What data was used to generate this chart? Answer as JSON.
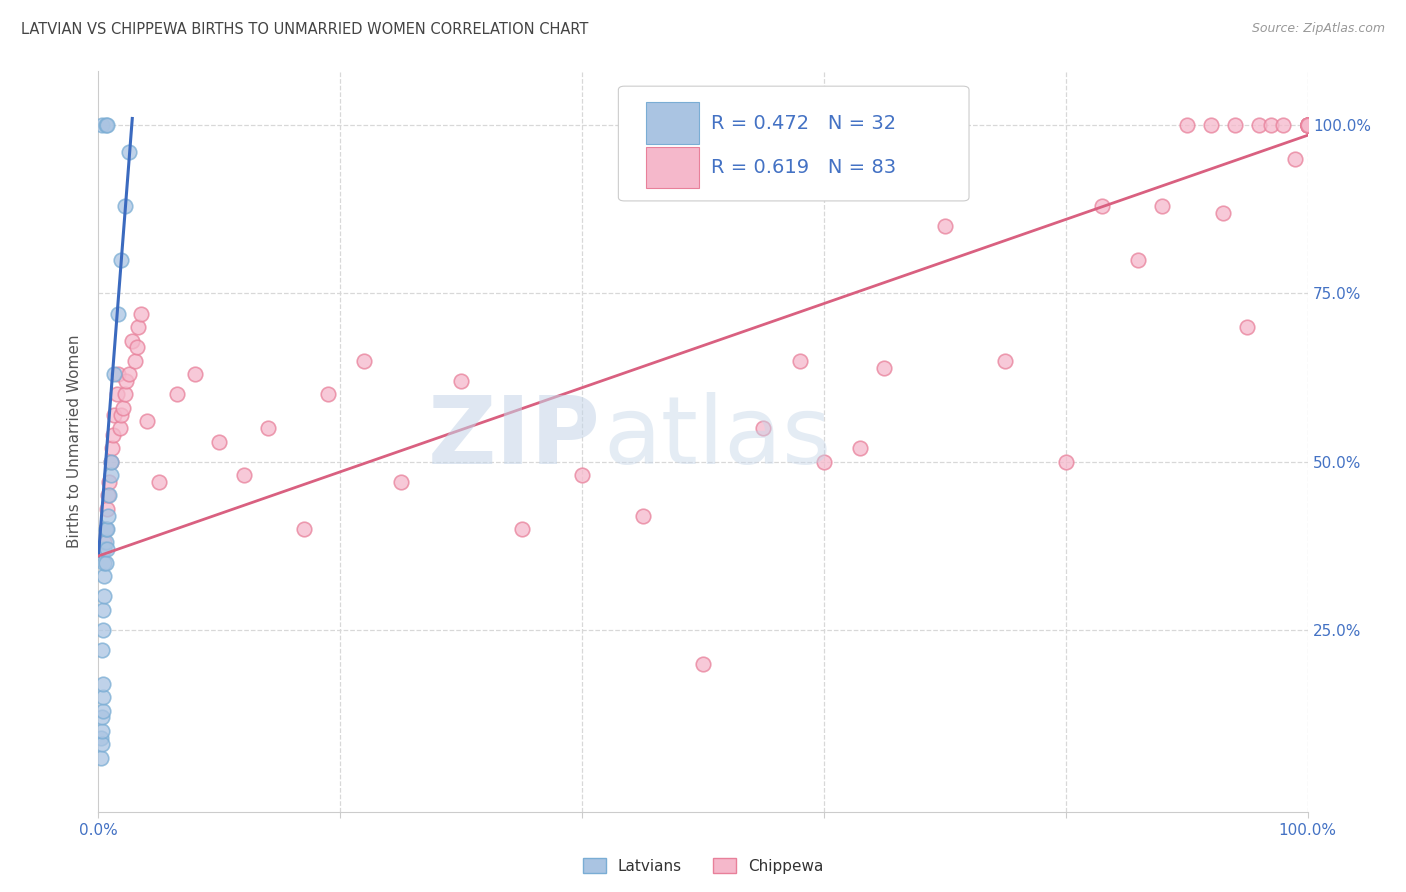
{
  "title": "LATVIAN VS CHIPPEWA BIRTHS TO UNMARRIED WOMEN CORRELATION CHART",
  "source": "Source: ZipAtlas.com",
  "ylabel": "Births to Unmarried Women",
  "latvian_color": "#aac4e2",
  "latvian_edge_color": "#7aadd4",
  "chippewa_color": "#f5b8cb",
  "chippewa_edge_color": "#e8809a",
  "latvian_line_color": "#3b6abf",
  "chippewa_line_color": "#d96080",
  "R_latvian": 0.472,
  "N_latvian": 32,
  "R_chippewa": 0.619,
  "N_chippewa": 83,
  "title_color": "#444444",
  "axis_color": "#4472c4",
  "label_color": "#555555",
  "background_color": "#ffffff",
  "grid_color": "#d8d8d8",
  "watermark_zip": "ZIP",
  "watermark_atlas": "atlas",
  "latvian_x": [
    0.002,
    0.003,
    0.003,
    0.003,
    0.004,
    0.004,
    0.004,
    0.004,
    0.004,
    0.005,
    0.005,
    0.005,
    0.005,
    0.005,
    0.005,
    0.006,
    0.006,
    0.007,
    0.007,
    0.008,
    0.008,
    0.009,
    0.009,
    0.01,
    0.01,
    0.011,
    0.013,
    0.016,
    0.019,
    0.022,
    0.025,
    0.028
  ],
  "latvian_y": [
    0.32,
    0.33,
    0.35,
    0.36,
    0.34,
    0.355,
    0.36,
    0.365,
    0.37,
    0.355,
    0.36,
    0.365,
    0.37,
    0.375,
    0.38,
    0.36,
    0.37,
    0.375,
    0.38,
    0.38,
    0.39,
    0.38,
    0.39,
    0.4,
    0.41,
    0.43,
    0.5,
    0.6,
    0.7,
    0.8,
    0.9,
    1.0
  ],
  "latvian_low_x": [
    0.002,
    0.003,
    0.003,
    0.004,
    0.004,
    0.005,
    0.005,
    0.005,
    0.006,
    0.007,
    0.008,
    0.009,
    0.01,
    0.012,
    0.016,
    0.022
  ],
  "latvian_low_y": [
    0.06,
    0.07,
    0.09,
    0.1,
    0.11,
    0.12,
    0.13,
    0.14,
    0.15,
    0.16,
    0.18,
    0.2,
    0.22,
    0.25,
    0.3,
    0.4
  ],
  "chippewa_x": [
    0.005,
    0.006,
    0.007,
    0.009,
    0.011,
    0.012,
    0.013,
    0.015,
    0.018,
    0.019,
    0.02,
    0.021,
    0.023,
    0.025,
    0.03,
    0.032,
    0.035,
    0.04,
    0.045,
    0.05,
    0.055,
    0.06,
    0.065,
    0.07,
    0.08,
    0.09,
    0.1,
    0.12,
    0.14,
    0.16,
    0.18,
    0.2,
    0.22,
    0.25,
    0.28,
    0.3,
    0.35,
    0.4,
    0.45,
    0.5,
    0.55,
    0.6,
    0.65,
    0.7,
    0.75,
    0.8,
    0.85,
    0.87,
    0.88,
    0.89,
    0.9,
    0.91,
    0.92,
    0.93,
    0.94,
    0.95,
    0.96,
    0.97,
    0.98,
    0.99,
    1.0,
    1.0,
    1.0,
    1.0,
    1.0,
    1.0,
    1.0,
    1.0,
    1.0,
    1.0,
    1.0,
    1.0,
    1.0,
    1.0,
    1.0,
    1.0,
    1.0,
    1.0,
    1.0,
    1.0,
    1.0,
    1.0,
    1.0
  ],
  "chippewa_y": [
    0.37,
    0.4,
    0.42,
    0.44,
    0.47,
    0.48,
    0.5,
    0.52,
    0.55,
    0.57,
    0.57,
    0.58,
    0.6,
    0.62,
    0.65,
    0.67,
    0.7,
    0.55,
    0.45,
    0.47,
    0.5,
    0.52,
    0.55,
    0.48,
    0.58,
    0.63,
    0.52,
    0.48,
    0.53,
    0.58,
    0.4,
    0.6,
    0.63,
    0.47,
    0.6,
    0.6,
    0.4,
    0.48,
    0.42,
    0.2,
    0.55,
    0.65,
    0.52,
    0.85,
    0.65,
    0.5,
    0.88,
    0.8,
    0.9,
    0.96,
    1.0,
    1.0,
    0.87,
    1.0,
    0.7,
    1.0,
    1.0,
    1.0,
    1.0,
    0.95,
    1.0,
    1.0,
    1.0,
    1.0,
    1.0,
    1.0,
    1.0,
    1.0,
    1.0,
    1.0,
    1.0,
    1.0,
    1.0,
    1.0,
    1.0,
    1.0,
    1.0,
    1.0,
    1.0,
    1.0,
    1.0,
    1.0,
    1.0
  ],
  "xlim": [
    0.0,
    1.0
  ],
  "ylim": [
    -0.02,
    1.08
  ],
  "lv_line_x0": 0.0,
  "lv_line_y0": 0.36,
  "lv_line_x1": 0.028,
  "lv_line_y1": 1.01,
  "chip_line_x0": 0.0,
  "chip_line_y0": 0.36,
  "chip_line_x1": 1.0,
  "chip_line_y1": 0.985
}
